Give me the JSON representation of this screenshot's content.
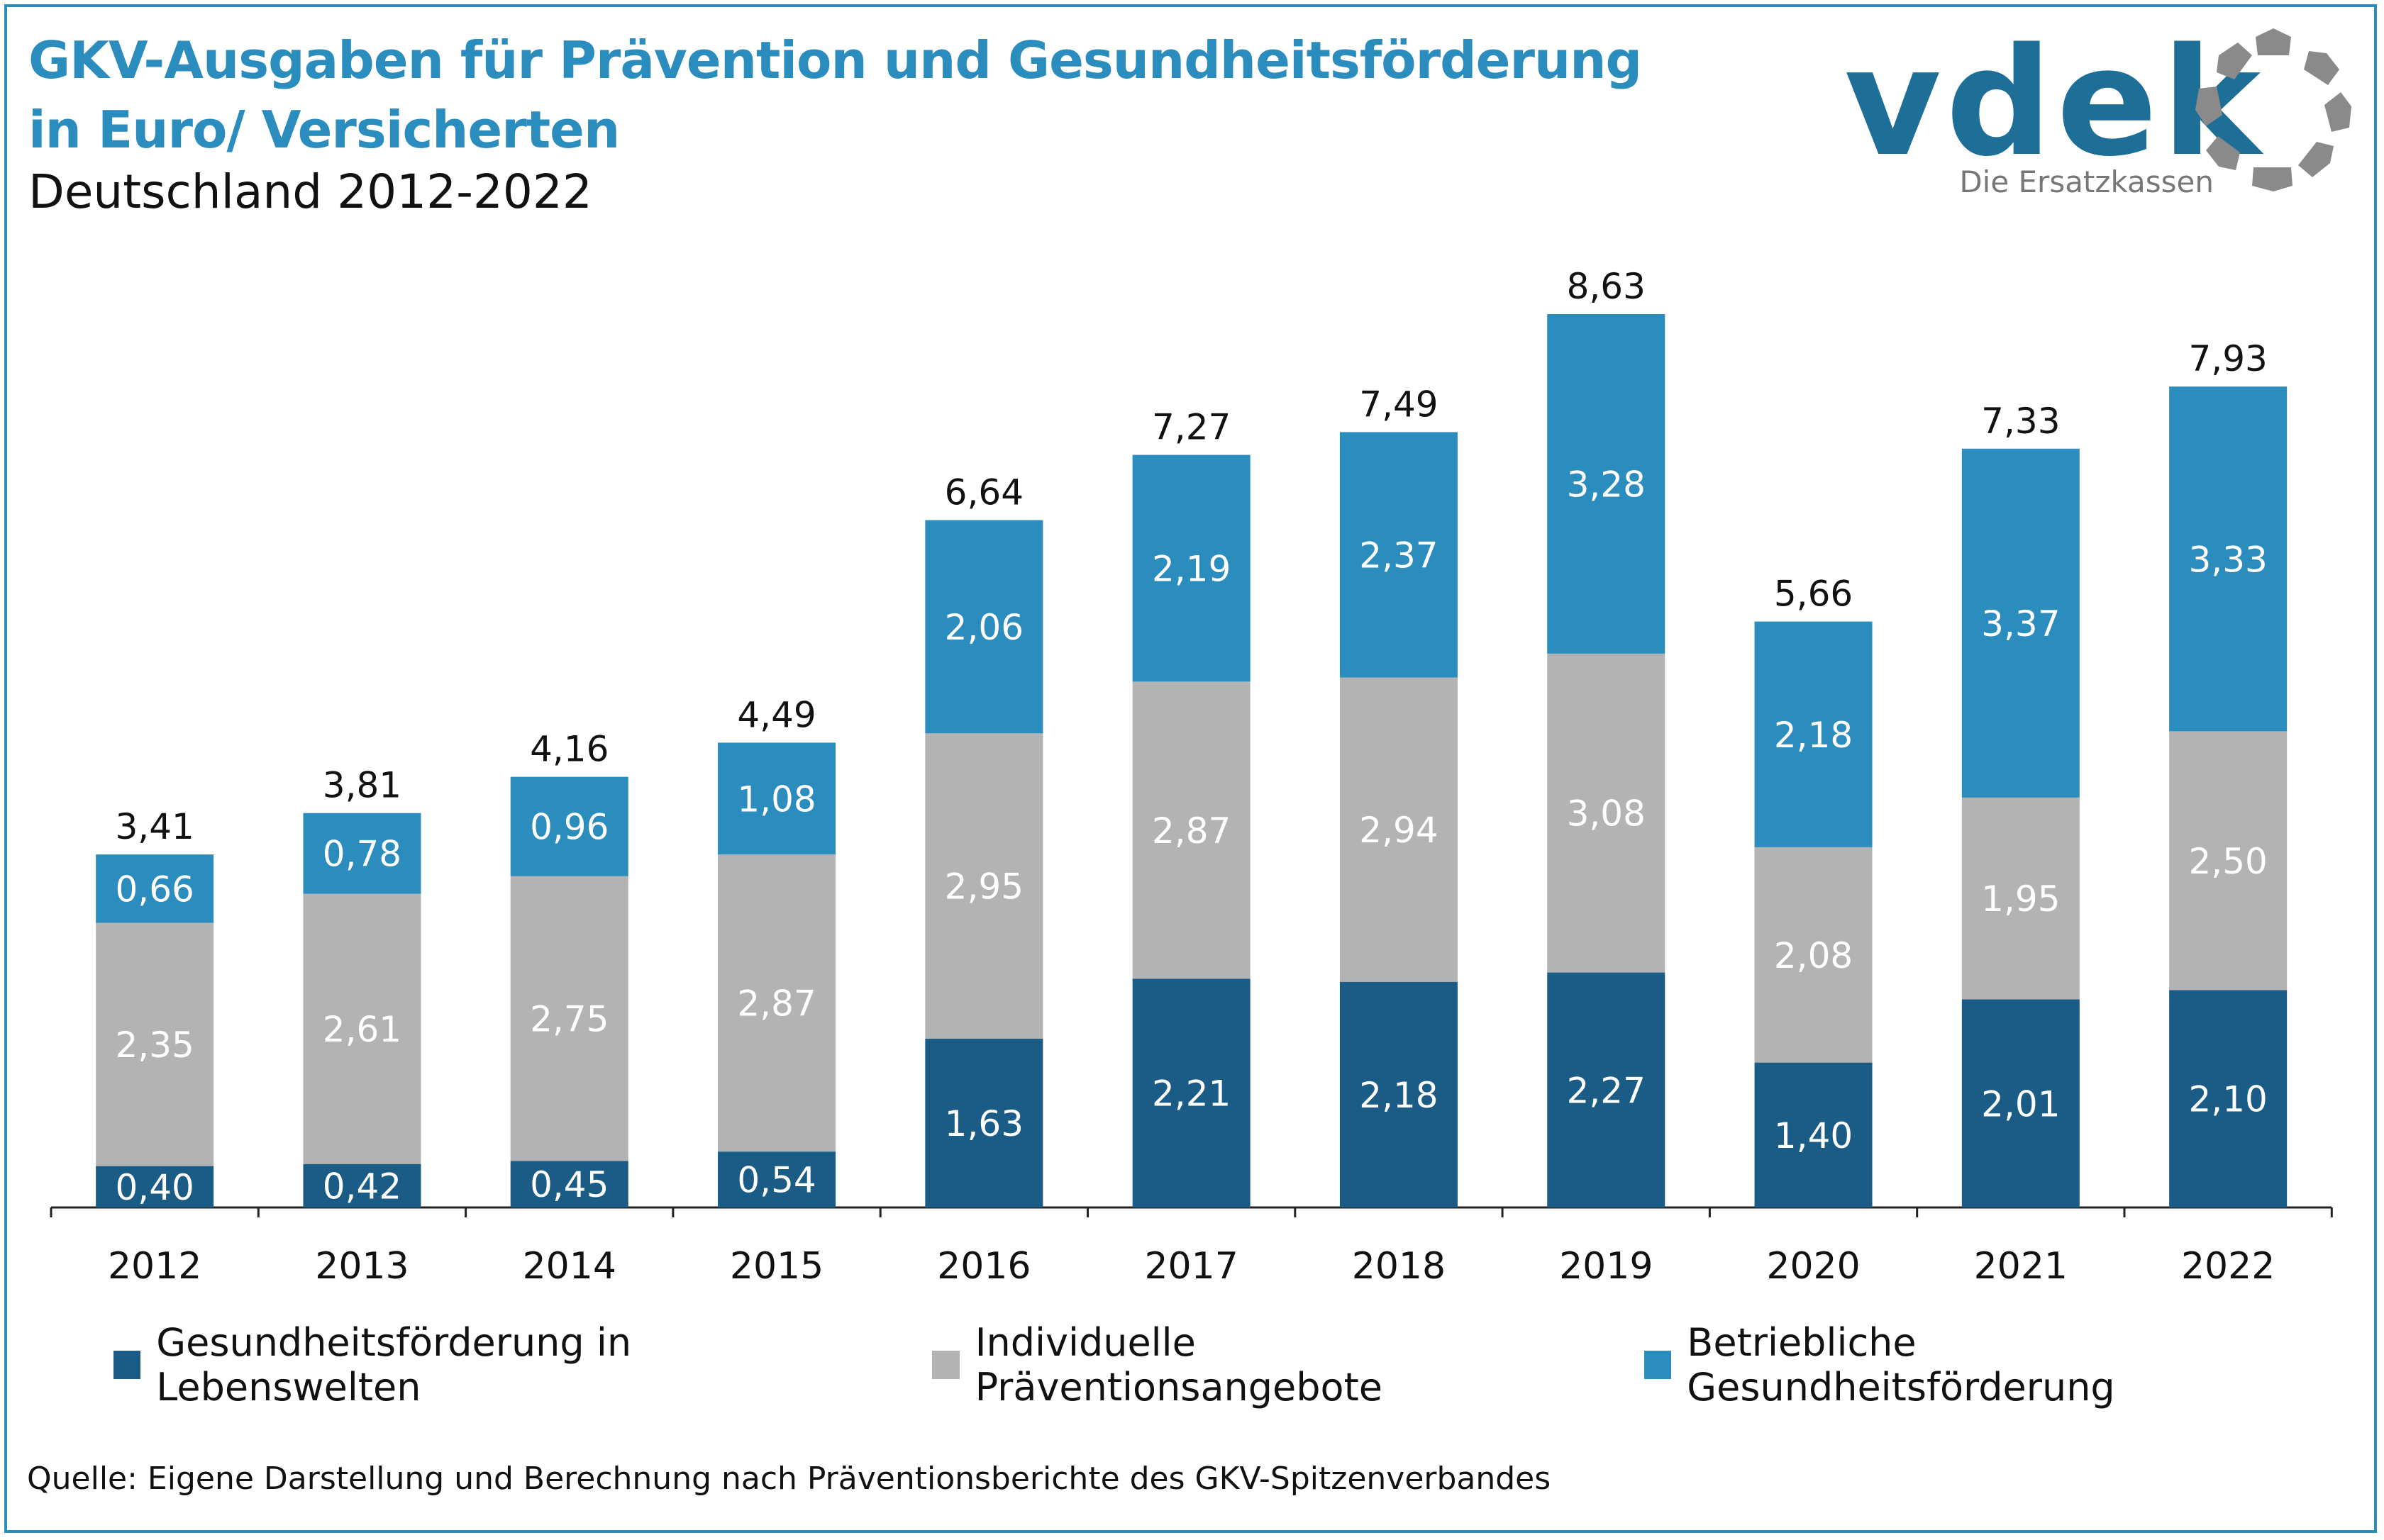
{
  "header": {
    "title_line1": "GKV-Ausgaben für Prävention und Gesundheitsförderung",
    "title_line2": "in Euro/ Versicherten",
    "subtitle": "Deutschland 2012-2022"
  },
  "logo": {
    "wordmark": "vdek",
    "tagline": "Die Ersatzkassen"
  },
  "colors": {
    "title": "#2b8cbe",
    "lebenswelten": "#1a5c85",
    "individuelle": "#b3b3b3",
    "betriebliche": "#2b8cbe"
  },
  "chart_data": {
    "type": "bar",
    "stacked": true,
    "categories": [
      "2012",
      "2013",
      "2014",
      "2015",
      "2016",
      "2017",
      "2018",
      "2019",
      "2020",
      "2021",
      "2022"
    ],
    "series": [
      {
        "name": "Gesundheitsförderung in Lebenswelten",
        "values": [
          0.4,
          0.42,
          0.45,
          0.54,
          1.63,
          2.21,
          2.18,
          2.27,
          1.4,
          2.01,
          2.1
        ],
        "labels": [
          "0,40",
          "0,42",
          "0,45",
          "0,54",
          "1,63",
          "2,21",
          "2,18",
          "2,27",
          "1,40",
          "2,01",
          "2,10"
        ]
      },
      {
        "name": "Individuelle Präventionsangebote",
        "values": [
          2.35,
          2.61,
          2.75,
          2.87,
          2.95,
          2.87,
          2.94,
          3.08,
          2.08,
          1.95,
          2.5
        ],
        "labels": [
          "2,35",
          "2,61",
          "2,75",
          "2,87",
          "2,95",
          "2,87",
          "2,94",
          "3,08",
          "2,08",
          "1,95",
          "2,50"
        ]
      },
      {
        "name": "Betriebliche Gesundheitsförderung",
        "values": [
          0.66,
          0.78,
          0.96,
          1.08,
          2.06,
          2.19,
          2.37,
          3.28,
          2.18,
          3.37,
          3.33
        ],
        "labels": [
          "0,66",
          "0,78",
          "0,96",
          "1,08",
          "2,06",
          "2,19",
          "2,37",
          "3,28",
          "2,18",
          "3,37",
          "3,33"
        ]
      }
    ],
    "totals": [
      "3,41",
      "3,81",
      "4,16",
      "4,49",
      "6,64",
      "7,27",
      "7,49",
      "8,63",
      "5,66",
      "7,33",
      "7,93"
    ],
    "ylim": [
      0,
      10
    ],
    "legend_position": "bottom",
    "grid": false
  },
  "source": "Quelle: Eigene Darstellung und Berechnung nach Präventionsberichte des GKV-Spitzenverbandes"
}
